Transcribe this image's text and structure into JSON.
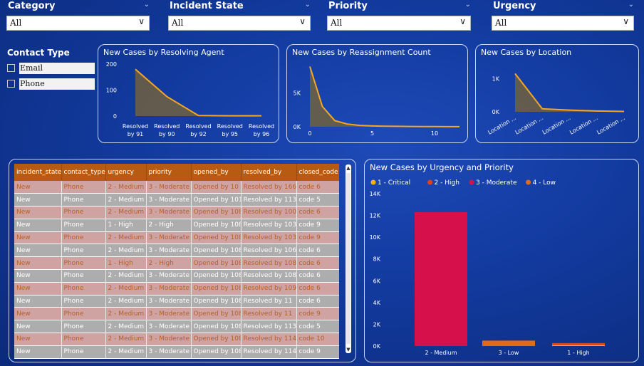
{
  "slicers": [
    {
      "title": "Category",
      "value": "All"
    },
    {
      "title": "Incident State",
      "value": "All"
    },
    {
      "title": "Priority",
      "value": "All"
    },
    {
      "title": "Urgency",
      "value": "All"
    }
  ],
  "contact_type": {
    "title": "Contact Type",
    "items": [
      "Email",
      "Phone"
    ]
  },
  "colors": {
    "line": "#f5a623",
    "area": "#6b5f45",
    "moderate": "#d6104a",
    "low": "#e06b1a",
    "critical": "#f5b400",
    "high": "#e0401a",
    "header": "#b85b12"
  },
  "chart_data": [
    {
      "type": "area",
      "title": "New Cases by Resolving Agent",
      "categories": [
        "Resolved by 91",
        "Resolved by 90",
        "Resolved by 92",
        "Resolved by 95",
        "Resolved by 96"
      ],
      "values": [
        180,
        75,
        2,
        1,
        1
      ],
      "yticks": [
        "200",
        "100",
        "0"
      ],
      "ylim": [
        0,
        200
      ]
    },
    {
      "type": "area",
      "title": "New Cases by Reassignment Count",
      "x": [
        0,
        1,
        2,
        3,
        4,
        5,
        6,
        7,
        8,
        9,
        10,
        11,
        12
      ],
      "values": [
        8900,
        3000,
        900,
        400,
        200,
        120,
        80,
        60,
        40,
        30,
        20,
        15,
        10
      ],
      "xticks": [
        "0",
        "5",
        "10"
      ],
      "yticks": [
        "5K",
        "0K"
      ],
      "ylim": [
        0,
        10000
      ]
    },
    {
      "type": "area",
      "title": "New Cases by Location",
      "categories": [
        "Location ...",
        "Location ...",
        "Location ...",
        "Location ...",
        "Location ..."
      ],
      "values": [
        1150,
        90,
        50,
        25,
        10
      ],
      "yticks": [
        "1K",
        "0K"
      ],
      "ylim": [
        0,
        1500
      ]
    },
    {
      "type": "bar",
      "title": "New Cases by Urgency and Priority",
      "legend": [
        "1 - Critical",
        "2 - High",
        "3 - Moderate",
        "4 - Low"
      ],
      "categories": [
        "2 - Medium",
        "3 - Low",
        "1 - High"
      ],
      "series": [
        {
          "name": "1 - Critical",
          "values": [
            0,
            0,
            80
          ]
        },
        {
          "name": "2 - High",
          "values": [
            0,
            0,
            150
          ]
        },
        {
          "name": "3 - Moderate",
          "values": [
            12300,
            0,
            0
          ]
        },
        {
          "name": "4 - Low",
          "values": [
            0,
            500,
            0
          ]
        }
      ],
      "yticks": [
        "14K",
        "12K",
        "10K",
        "8K",
        "6K",
        "4K",
        "2K",
        "0K"
      ],
      "ylim": [
        0,
        14000
      ]
    }
  ],
  "table": {
    "headers": [
      "incident_state",
      "contact_type",
      "urgency",
      "priority",
      "opened_by",
      "resolved_by",
      "closed_code"
    ],
    "rows": [
      [
        "New",
        "Phone",
        "2 - Medium",
        "3 - Moderate",
        "Opened by 10",
        "Resolved by 166",
        "code 6"
      ],
      [
        "New",
        "Phone",
        "2 - Medium",
        "3 - Moderate",
        "Opened by 101",
        "Resolved by 113",
        "code 5"
      ],
      [
        "New",
        "Phone",
        "2 - Medium",
        "3 - Moderate",
        "Opened by 108",
        "Resolved by 100",
        "code 6"
      ],
      [
        "New",
        "Phone",
        "1 - High",
        "2 - High",
        "Opened by 108",
        "Resolved by 103",
        "code 9"
      ],
      [
        "New",
        "Phone",
        "2 - Medium",
        "3 - Moderate",
        "Opened by 108",
        "Resolved by 103",
        "code 9"
      ],
      [
        "New",
        "Phone",
        "2 - Medium",
        "3 - Moderate",
        "Opened by 108",
        "Resolved by 106",
        "code 6"
      ],
      [
        "New",
        "Phone",
        "1 - High",
        "2 - High",
        "Opened by 108",
        "Resolved by 108",
        "code 6"
      ],
      [
        "New",
        "Phone",
        "2 - Medium",
        "3 - Moderate",
        "Opened by 108",
        "Resolved by 108",
        "code 6"
      ],
      [
        "New",
        "Phone",
        "2 - Medium",
        "3 - Moderate",
        "Opened by 108",
        "Resolved by 109",
        "code 6"
      ],
      [
        "New",
        "Phone",
        "2 - Medium",
        "3 - Moderate",
        "Opened by 108",
        "Resolved by 11",
        "code 6"
      ],
      [
        "New",
        "Phone",
        "2 - Medium",
        "3 - Moderate",
        "Opened by 108",
        "Resolved by 11",
        "code 9"
      ],
      [
        "New",
        "Phone",
        "2 - Medium",
        "3 - Moderate",
        "Opened by 108",
        "Resolved by 113",
        "code 5"
      ],
      [
        "New",
        "Phone",
        "2 - Medium",
        "3 - Moderate",
        "Opened by 108",
        "Resolved by 114",
        "code 10"
      ],
      [
        "New",
        "Phone",
        "2 - Medium",
        "3 - Moderate",
        "Opened by 108",
        "Resolved by 114",
        "code 9"
      ]
    ]
  }
}
